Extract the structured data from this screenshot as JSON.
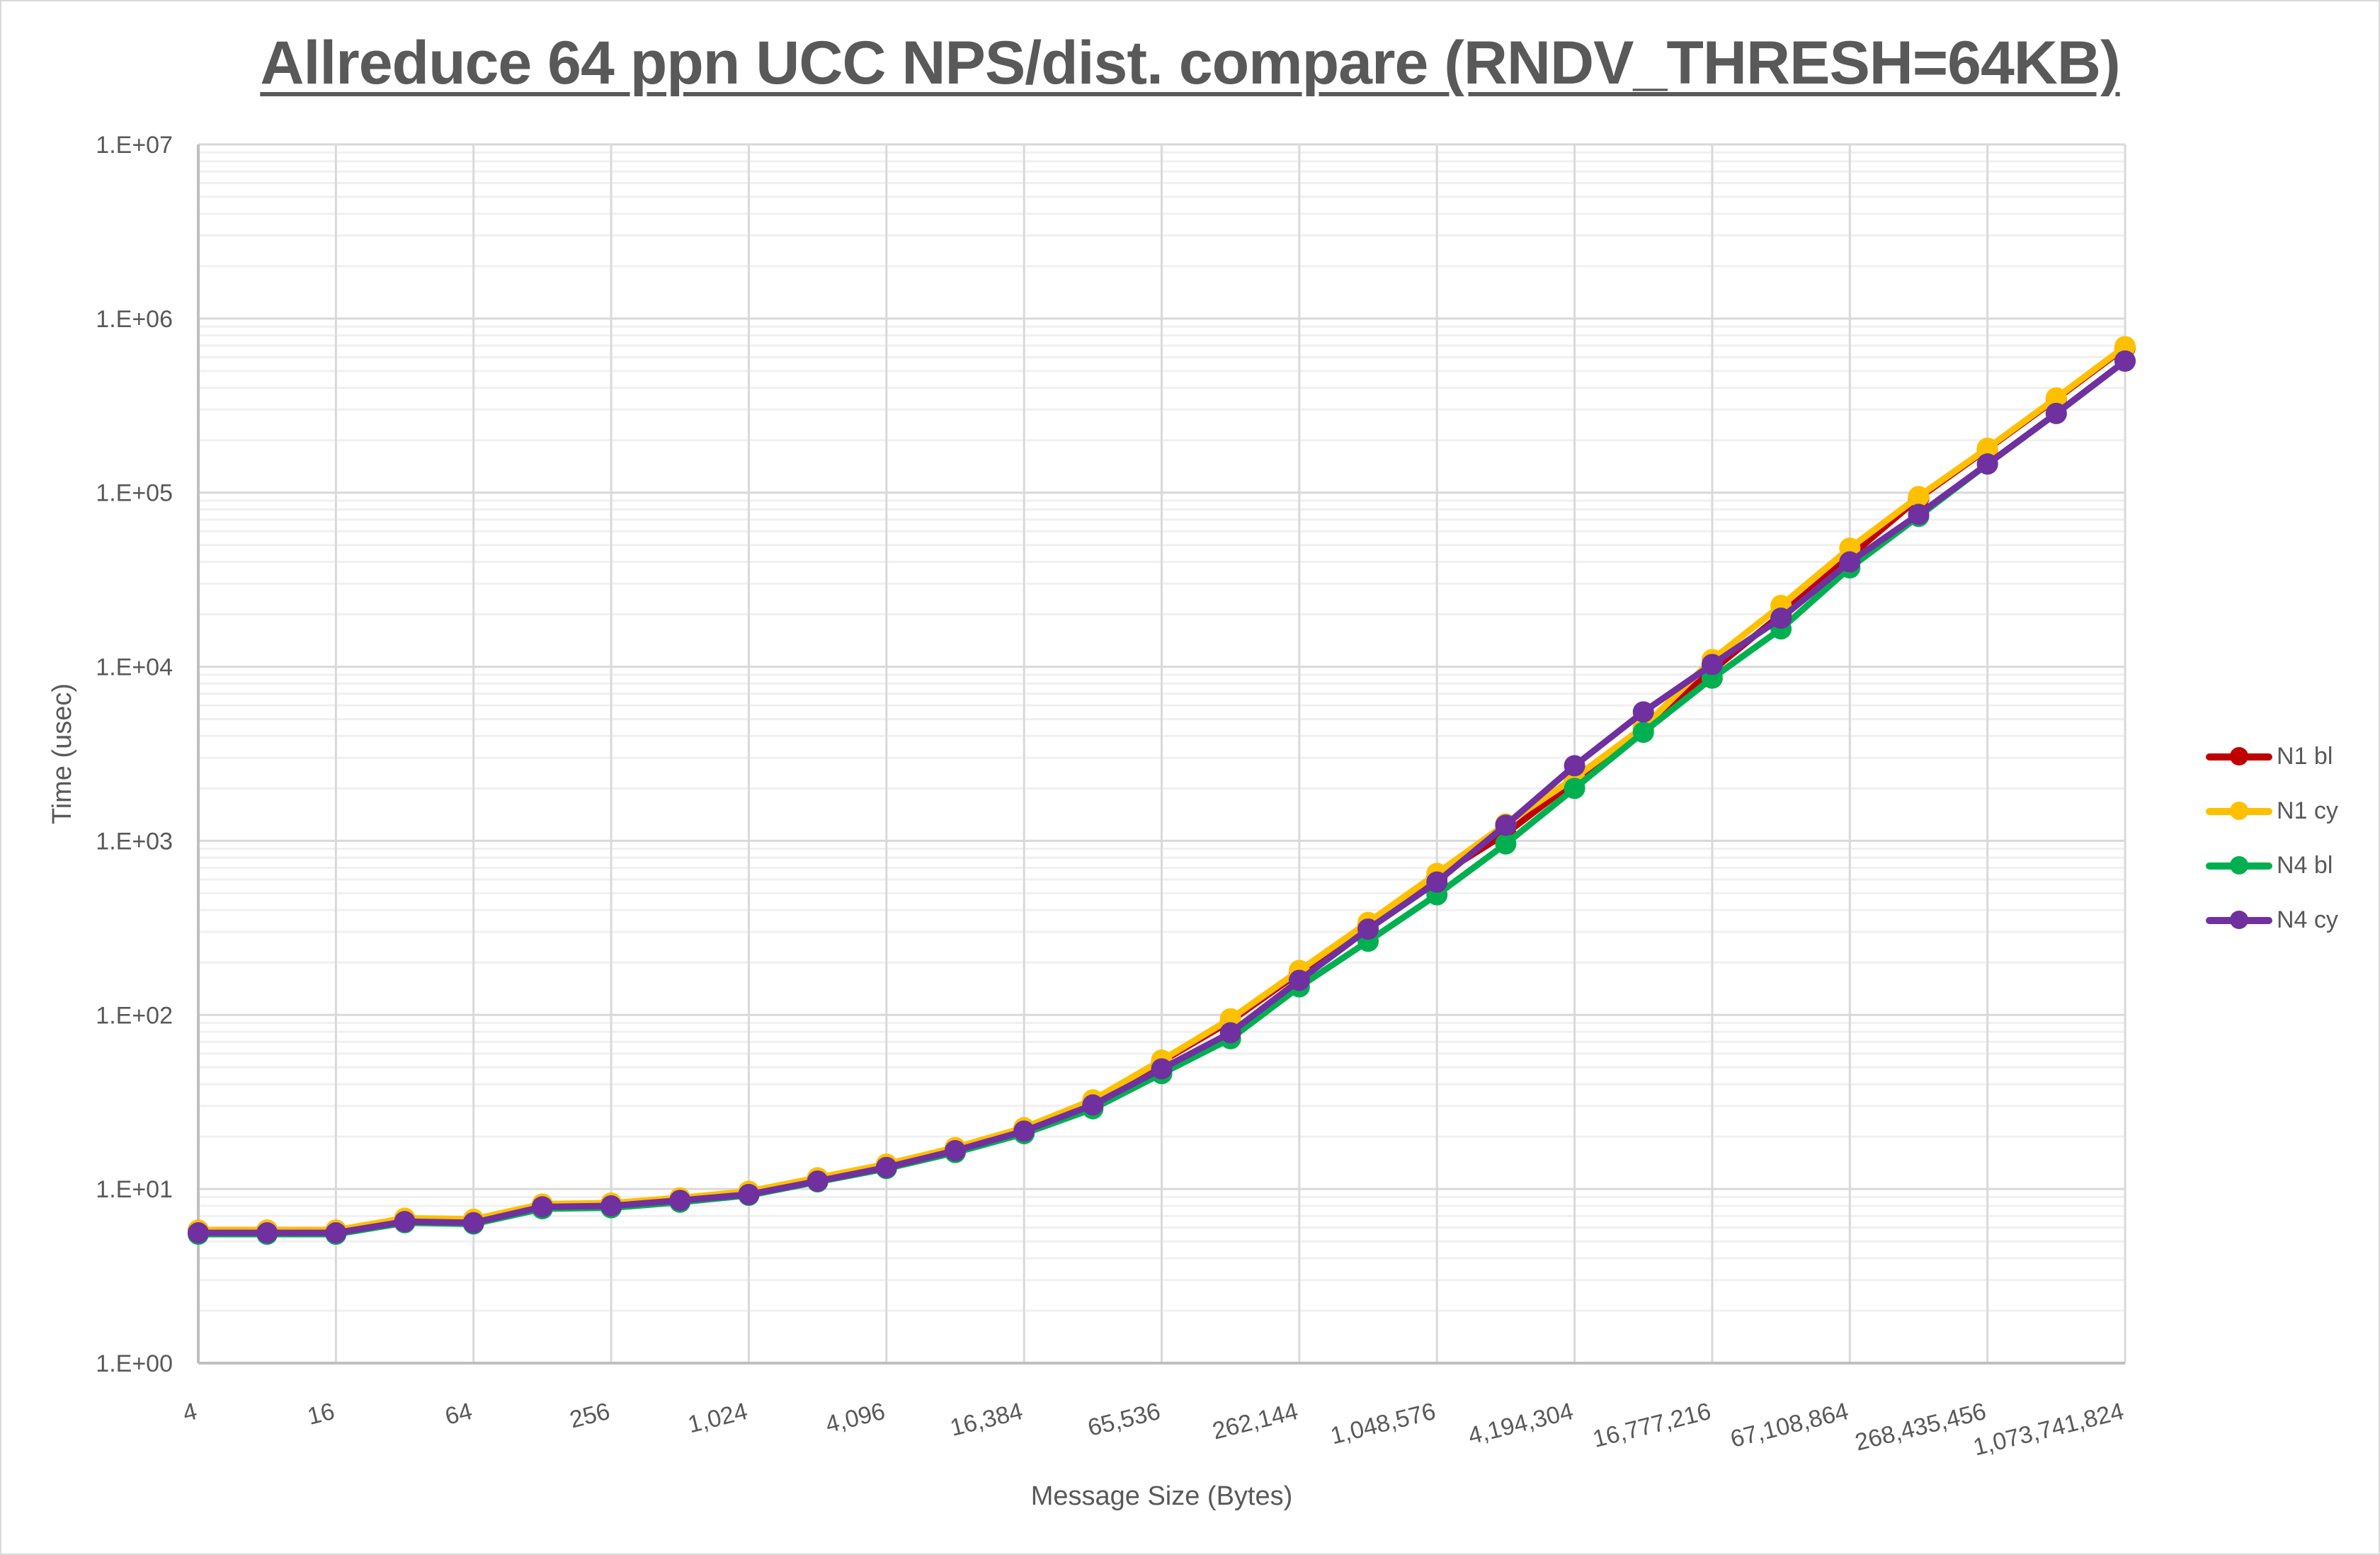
{
  "chart_data": {
    "type": "line",
    "title": "Allreduce 64 ppn UCC NPS/dist. compare (RNDV_THRESH=64KB)",
    "xlabel": "Message Size (Bytes)",
    "ylabel": "Time (usec)",
    "yscale": "log",
    "ylim": [
      1,
      10000000
    ],
    "y_ticks": [
      "1.E+00",
      "1.E+01",
      "1.E+02",
      "1.E+03",
      "1.E+04",
      "1.E+05",
      "1.E+06",
      "1.E+07"
    ],
    "x_tick_labels": [
      "4",
      "16",
      "64",
      "256",
      "1,024",
      "4,096",
      "16,384",
      "65,536",
      "262,144",
      "1,048,576",
      "4,194,304",
      "16,777,216",
      "67,108,864",
      "268,435,456",
      "1,073,741,824"
    ],
    "grid": true,
    "legend_position": "right",
    "x": [
      4,
      8,
      16,
      32,
      64,
      128,
      256,
      512,
      1024,
      2048,
      4096,
      8192,
      16384,
      32768,
      65536,
      131072,
      262144,
      524288,
      1048576,
      2097152,
      4194304,
      8388608,
      16777216,
      33554432,
      67108864,
      134217728,
      268435456,
      536870912,
      1073741824
    ],
    "series": [
      {
        "name": "N1 bl",
        "color": "#C00000",
        "values": [
          5.8,
          5.8,
          5.8,
          6.7,
          6.6,
          8.1,
          8.2,
          8.8,
          9.6,
          11.5,
          13.8,
          17.1,
          22.3,
          32,
          54,
          92,
          175,
          330,
          620,
          1100,
          2200,
          4400,
          9500,
          20000,
          43000,
          93000,
          178000,
          345000,
          680000
        ]
      },
      {
        "name": "N1 cy",
        "color": "#FFC000",
        "values": [
          5.8,
          5.8,
          5.8,
          6.8,
          6.7,
          8.2,
          8.3,
          8.9,
          9.7,
          11.6,
          13.9,
          17.3,
          22.5,
          32.5,
          55,
          95,
          180,
          340,
          650,
          1250,
          2300,
          4500,
          11000,
          22500,
          48000,
          95000,
          180000,
          350000,
          690000
        ]
      },
      {
        "name": "N4 bl",
        "color": "#00B050",
        "values": [
          5.5,
          5.5,
          5.5,
          6.4,
          6.3,
          7.7,
          7.8,
          8.4,
          9.2,
          11,
          13.1,
          16.2,
          20.8,
          28.9,
          46,
          73,
          145,
          265,
          490,
          960,
          2000,
          4200,
          8600,
          16500,
          37000,
          73000,
          146000,
          285000,
          570000
        ]
      },
      {
        "name": "N4 cy",
        "color": "#7030A0",
        "values": [
          5.6,
          5.6,
          5.6,
          6.5,
          6.4,
          7.9,
          8.0,
          8.6,
          9.3,
          11.1,
          13.3,
          16.6,
          21.5,
          30.4,
          49,
          79,
          158,
          311,
          580,
          1230,
          2700,
          5500,
          10300,
          19000,
          40000,
          75000,
          146000,
          285000,
          570000
        ]
      }
    ]
  }
}
